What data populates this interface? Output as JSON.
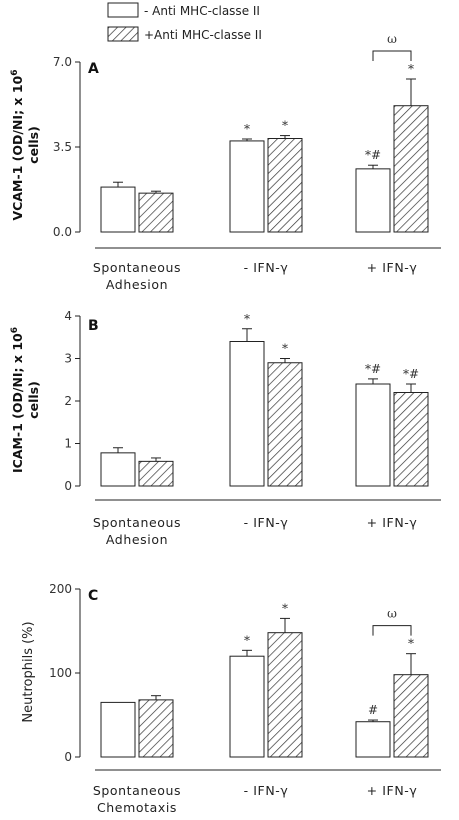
{
  "legend": {
    "items": [
      {
        "label": "- Anti MHC-classe II",
        "pattern": "open"
      },
      {
        "label": "+Anti MHC-classe II",
        "pattern": "hatched"
      }
    ]
  },
  "chart_data": [
    {
      "type": "bar",
      "panel": "A",
      "ylabel_line1": "VCAM-1 (OD/NI",
      "ylabel_line1_suffix": "; x 10",
      "ylabel_sup": "6",
      "ylabel_line2": "cells)",
      "ylim": [
        0,
        7.0
      ],
      "yticks": [
        0.0,
        3.5,
        7.0
      ],
      "ytick_labels": [
        "0.0",
        "3.5",
        "7.0"
      ],
      "categories": [
        [
          "Spontaneous",
          "Adhesion"
        ],
        [
          "- IFN-γ"
        ],
        [
          "+ IFN-γ"
        ]
      ],
      "series": [
        {
          "name": "- Anti MHC-classe II",
          "values": [
            1.85,
            3.75,
            2.6
          ],
          "errors": [
            0.2,
            0.08,
            0.15
          ],
          "annotations": [
            "",
            "*",
            "*#"
          ]
        },
        {
          "name": "+Anti MHC-classe II",
          "values": [
            1.6,
            3.85,
            5.2
          ],
          "errors": [
            0.08,
            0.12,
            1.1
          ],
          "annotations": [
            "",
            "*",
            "*"
          ]
        }
      ],
      "bracket": {
        "from_category": 2,
        "label": "ω"
      }
    },
    {
      "type": "bar",
      "panel": "B",
      "ylabel_line1": "ICAM-1 (OD/NI",
      "ylabel_line1_suffix": "; x 10",
      "ylabel_sup": "6",
      "ylabel_line2": "cells)",
      "ylim": [
        0,
        4
      ],
      "yticks": [
        0,
        1,
        2,
        3,
        4
      ],
      "ytick_labels": [
        "0",
        "1",
        "2",
        "3",
        "4"
      ],
      "categories": [
        [
          "Spontaneous",
          "Adhesion"
        ],
        [
          "- IFN-γ"
        ],
        [
          "+ IFN-γ"
        ]
      ],
      "series": [
        {
          "name": "- Anti MHC-classe II",
          "values": [
            0.78,
            3.4,
            2.4
          ],
          "errors": [
            0.12,
            0.3,
            0.12
          ],
          "annotations": [
            "",
            "*",
            "*#"
          ]
        },
        {
          "name": "+Anti MHC-classe II",
          "values": [
            0.58,
            2.9,
            2.2
          ],
          "errors": [
            0.08,
            0.1,
            0.2
          ],
          "annotations": [
            "",
            "*",
            "*#"
          ]
        }
      ]
    },
    {
      "type": "bar",
      "panel": "C",
      "ylabel": "Neutrophils (%)",
      "ylim": [
        0,
        200
      ],
      "yticks": [
        0,
        100,
        200
      ],
      "ytick_labels": [
        "0",
        "100",
        "200"
      ],
      "categories": [
        [
          "Spontaneous",
          "Chemotaxis"
        ],
        [
          "- IFN-γ"
        ],
        [
          "+ IFN-γ"
        ]
      ],
      "series": [
        {
          "name": "- Anti MHC-classe II",
          "values": [
            65,
            120,
            42
          ],
          "errors": [
            0,
            7,
            2
          ],
          "annotations": [
            "",
            "*",
            "#"
          ]
        },
        {
          "name": "+Anti MHC-classe II",
          "values": [
            68,
            148,
            98
          ],
          "errors": [
            5,
            17,
            25
          ],
          "annotations": [
            "",
            "*",
            "*"
          ]
        }
      ],
      "bracket": {
        "from_category": 2,
        "label": "ω"
      }
    }
  ]
}
